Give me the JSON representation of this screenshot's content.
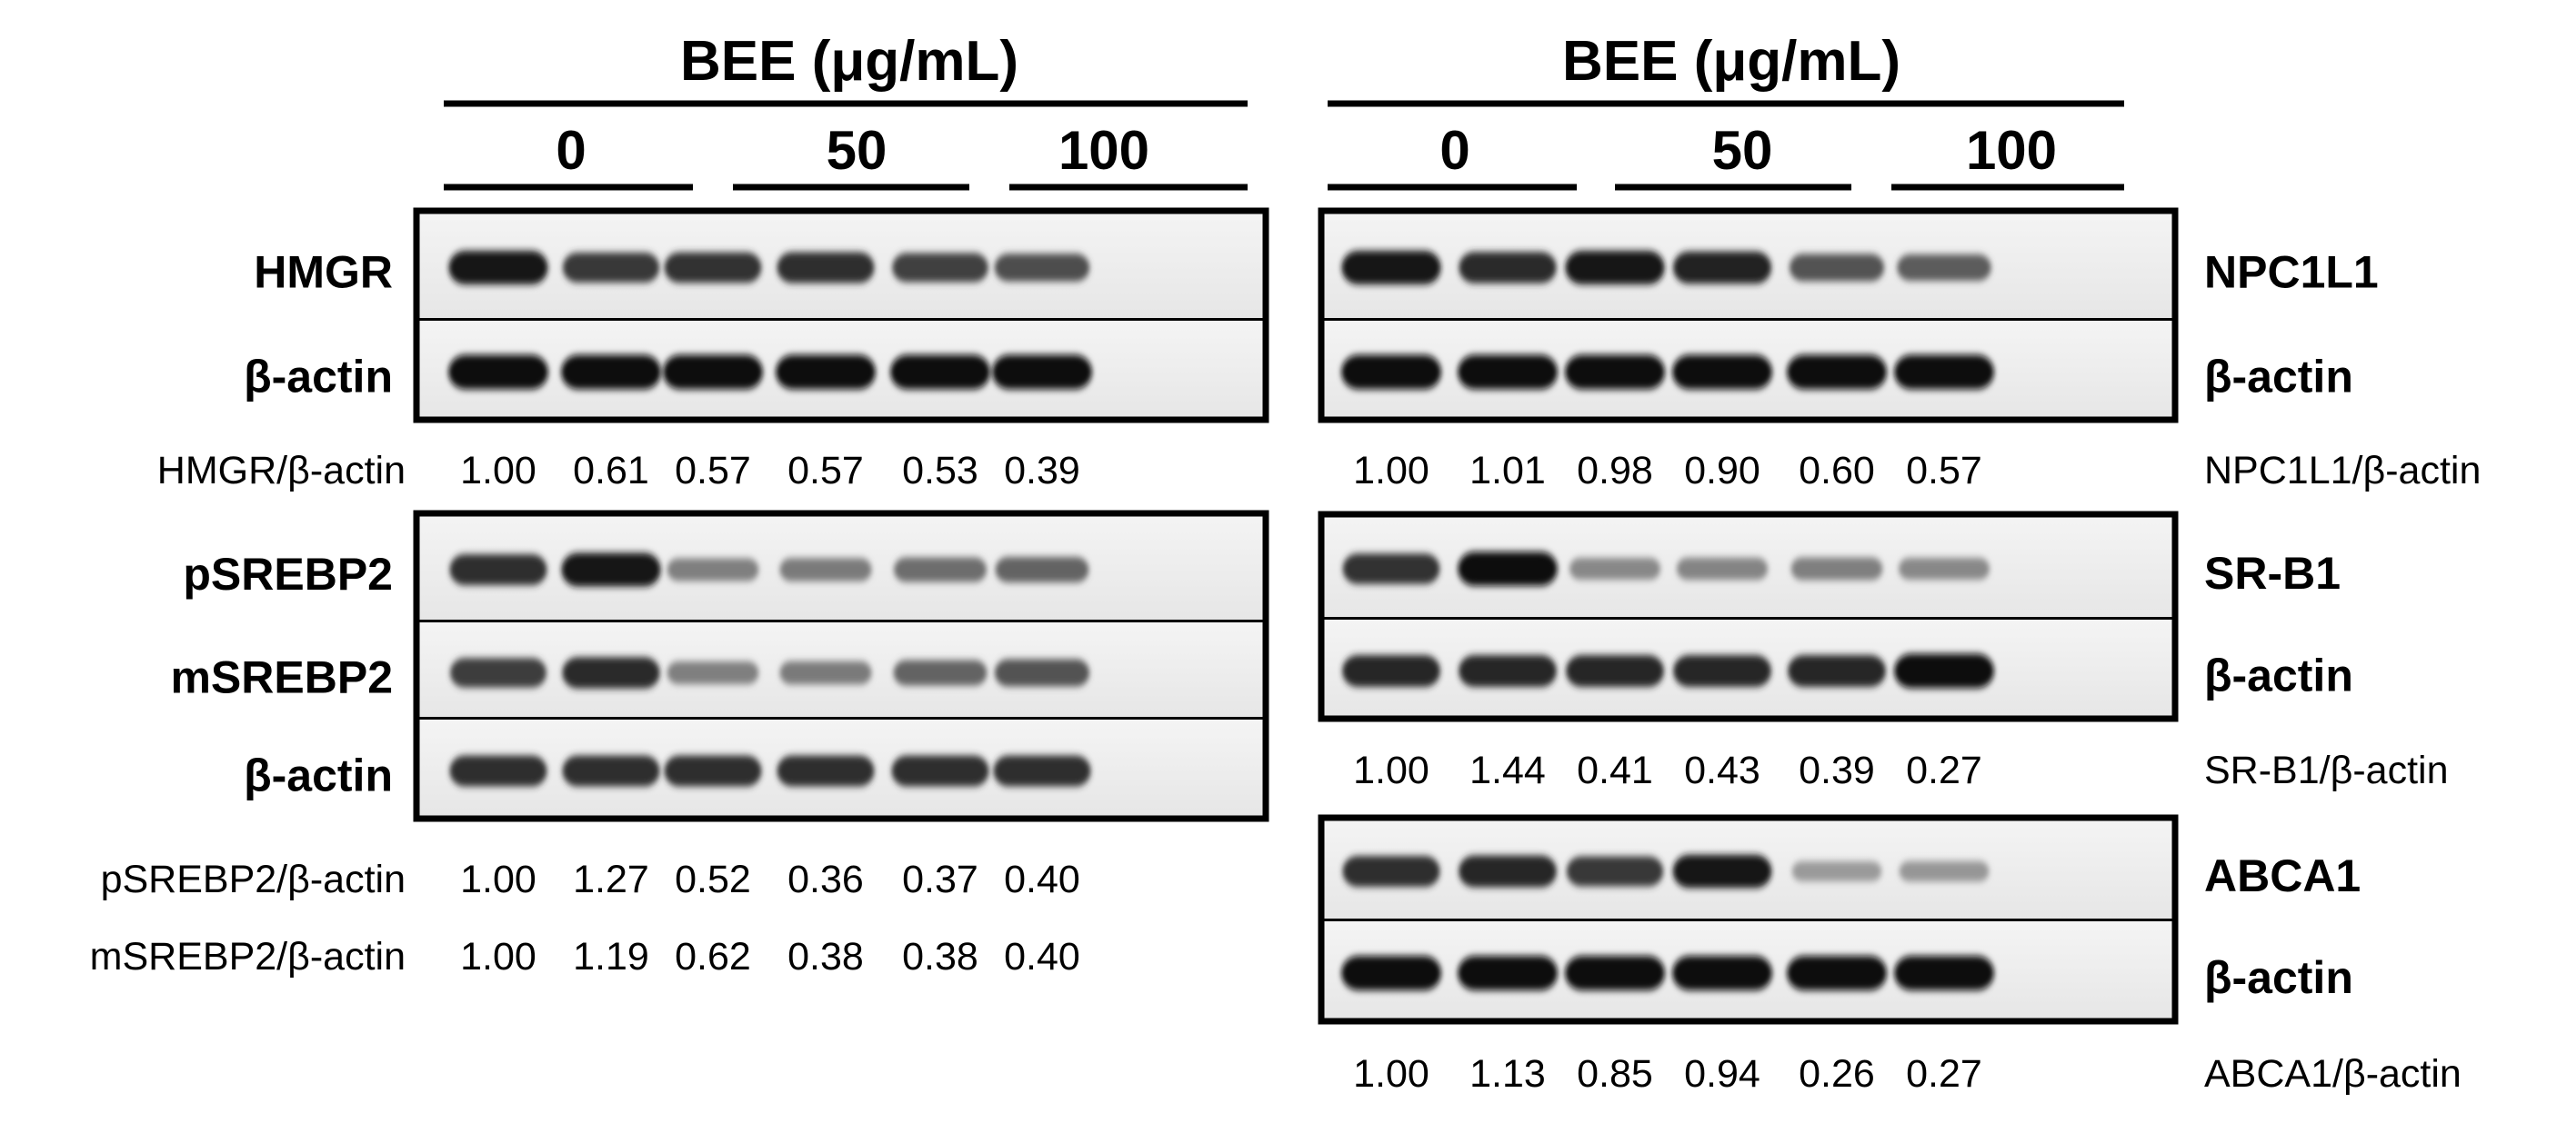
{
  "left": {
    "header": {
      "title": "BEE (μg/mL)",
      "groups": [
        "0",
        "50",
        "100"
      ]
    },
    "blocks": [
      {
        "strips": [
          {
            "label": "HMGR",
            "intensity": [
              0.95,
              0.75,
              0.78,
              0.8,
              0.7,
              0.62
            ]
          },
          {
            "label": "β-actin",
            "intensity": [
              1.0,
              1.0,
              1.0,
              1.0,
              1.0,
              1.0
            ]
          }
        ],
        "ratios": [
          {
            "label": "HMGR/β-actin",
            "values": [
              "1.00",
              "0.61",
              "0.57",
              "0.57",
              "0.53",
              "0.39"
            ]
          }
        ]
      },
      {
        "strips": [
          {
            "label": "pSREBP2",
            "intensity": [
              0.8,
              0.95,
              0.35,
              0.38,
              0.45,
              0.5
            ]
          },
          {
            "label": "mSREBP2",
            "intensity": [
              0.72,
              0.82,
              0.35,
              0.38,
              0.5,
              0.6
            ]
          },
          {
            "label": "β-actin",
            "intensity": [
              0.8,
              0.8,
              0.8,
              0.8,
              0.8,
              0.8
            ]
          }
        ],
        "ratios": [
          {
            "label": "pSREBP2/β-actin",
            "values": [
              "1.00",
              "1.27",
              "0.52",
              "0.36",
              "0.37",
              "0.40"
            ]
          },
          {
            "label": "mSREBP2/β-actin",
            "values": [
              "1.00",
              "1.19",
              "0.62",
              "0.38",
              "0.38",
              "0.40"
            ]
          }
        ]
      }
    ]
  },
  "right": {
    "header": {
      "title": "BEE (μg/mL)",
      "groups": [
        "0",
        "50",
        "100"
      ]
    },
    "blocks": [
      {
        "strips": [
          {
            "label": "NPC1L1",
            "intensity": [
              0.95,
              0.82,
              0.95,
              0.88,
              0.6,
              0.55
            ]
          },
          {
            "label": "β-actin",
            "intensity": [
              1.0,
              1.0,
              1.0,
              1.0,
              1.0,
              1.0
            ]
          }
        ],
        "ratios": [
          {
            "label": "NPC1L1/β-actin",
            "values": [
              "1.00",
              "1.01",
              "0.98",
              "0.90",
              "0.60",
              "0.57"
            ]
          }
        ]
      },
      {
        "strips": [
          {
            "label": "SR-B1",
            "intensity": [
              0.78,
              0.98,
              0.3,
              0.32,
              0.35,
              0.3
            ]
          },
          {
            "label": "β-actin",
            "intensity": [
              0.85,
              0.85,
              0.85,
              0.85,
              0.85,
              1.0
            ]
          }
        ],
        "ratios": [
          {
            "label": "SR-B1/β-actin",
            "values": [
              "1.00",
              "1.44",
              "0.41",
              "0.43",
              "0.39",
              "0.27"
            ]
          }
        ]
      },
      {
        "strips": [
          {
            "label": "ABCA1",
            "intensity": [
              0.8,
              0.85,
              0.75,
              0.92,
              0.2,
              0.22
            ]
          },
          {
            "label": "β-actin",
            "intensity": [
              1.0,
              1.0,
              1.0,
              1.0,
              1.0,
              1.0
            ]
          }
        ],
        "ratios": [
          {
            "label": "ABCA1/β-actin",
            "values": [
              "1.00",
              "1.13",
              "0.85",
              "0.94",
              "0.26",
              "0.27"
            ]
          }
        ]
      }
    ]
  }
}
